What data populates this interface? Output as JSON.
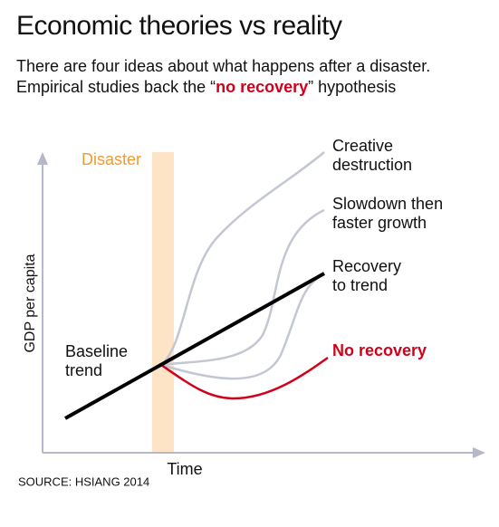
{
  "header": {
    "title": "Economic theories vs reality",
    "subtitle": {
      "before": "There are four ideas about what happens after a disaster. Empirical studies back the “",
      "highlight": "no recovery",
      "after": "” hypothesis"
    }
  },
  "diagram": {
    "event_label": "Disaster",
    "y_axis_label": "GDP per capita",
    "x_axis_label": "Time",
    "baseline_label": [
      "Baseline",
      "trend"
    ],
    "outcomes": [
      {
        "lines": [
          "Creative",
          "destruction"
        ]
      },
      {
        "lines": [
          "Slowdown then",
          "faster growth"
        ]
      },
      {
        "lines": [
          "Recovery",
          "to trend"
        ]
      },
      {
        "lines": [
          "No recovery"
        ]
      }
    ]
  },
  "footer": {
    "source": "SOURCE: HSIANG 2014"
  }
}
